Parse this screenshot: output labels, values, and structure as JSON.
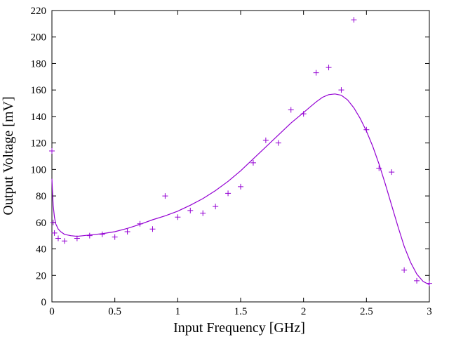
{
  "chart_data": {
    "type": "scatter",
    "title": "",
    "xlabel": "Input Frequency [GHz]",
    "ylabel": "Output Voltage [mV]",
    "xlim": [
      0,
      3
    ],
    "ylim": [
      0,
      220
    ],
    "xticks": [
      0,
      0.5,
      1,
      1.5,
      2,
      2.5,
      3
    ],
    "xtick_labels": [
      "0",
      "0.5",
      "1",
      "1.5",
      "2",
      "2.5",
      "3"
    ],
    "yticks": [
      0,
      20,
      40,
      60,
      80,
      100,
      120,
      140,
      160,
      180,
      200,
      220
    ],
    "ytick_labels": [
      "0",
      "20",
      "40",
      "60",
      "80",
      "100",
      "120",
      "140",
      "160",
      "180",
      "200",
      "220"
    ],
    "grid": false,
    "legend": "none",
    "color": "#9400d3",
    "series": [
      {
        "kind": "points",
        "marker": "plus",
        "x": [
          0,
          0.01,
          0.02,
          0.05,
          0.1,
          0.2,
          0.3,
          0.4,
          0.5,
          0.6,
          0.7,
          0.8,
          0.9,
          1.0,
          1.1,
          1.2,
          1.3,
          1.4,
          1.5,
          1.6,
          1.7,
          1.8,
          1.9,
          2.0,
          2.1,
          2.2,
          2.3,
          2.4,
          2.5,
          2.6,
          2.7,
          2.8,
          2.9,
          3.0
        ],
        "y": [
          114,
          60,
          52,
          48,
          46,
          48,
          50,
          51,
          49,
          53,
          59,
          55,
          80,
          64,
          69,
          67,
          72,
          82,
          87,
          105,
          122,
          120,
          145,
          142,
          173,
          177,
          160,
          213,
          130,
          101,
          98,
          24,
          16,
          14
        ]
      },
      {
        "kind": "curve",
        "x": [
          0,
          0.005,
          0.01,
          0.02,
          0.03,
          0.05,
          0.07,
          0.1,
          0.15,
          0.2,
          0.25,
          0.3,
          0.4,
          0.5,
          0.6,
          0.7,
          0.8,
          0.9,
          1.0,
          1.1,
          1.2,
          1.3,
          1.4,
          1.5,
          1.6,
          1.7,
          1.8,
          1.9,
          2.0,
          2.05,
          2.1,
          2.15,
          2.2,
          2.25,
          2.3,
          2.35,
          2.4,
          2.45,
          2.5,
          2.55,
          2.6,
          2.65,
          2.7,
          2.75,
          2.8,
          2.85,
          2.9,
          2.95,
          3.0
        ],
        "y": [
          93,
          82,
          73,
          64,
          59,
          55,
          53,
          51,
          50,
          49.5,
          50,
          50.5,
          51.5,
          53,
          55.5,
          58.5,
          62,
          65,
          68.5,
          73,
          78,
          84,
          91,
          99,
          108,
          117,
          126,
          135,
          143,
          147,
          151,
          154.5,
          156.5,
          157,
          156,
          152.5,
          146.5,
          138.5,
          129,
          117.5,
          104,
          89,
          73,
          57,
          42,
          30,
          21,
          15.5,
          13
        ]
      }
    ]
  }
}
